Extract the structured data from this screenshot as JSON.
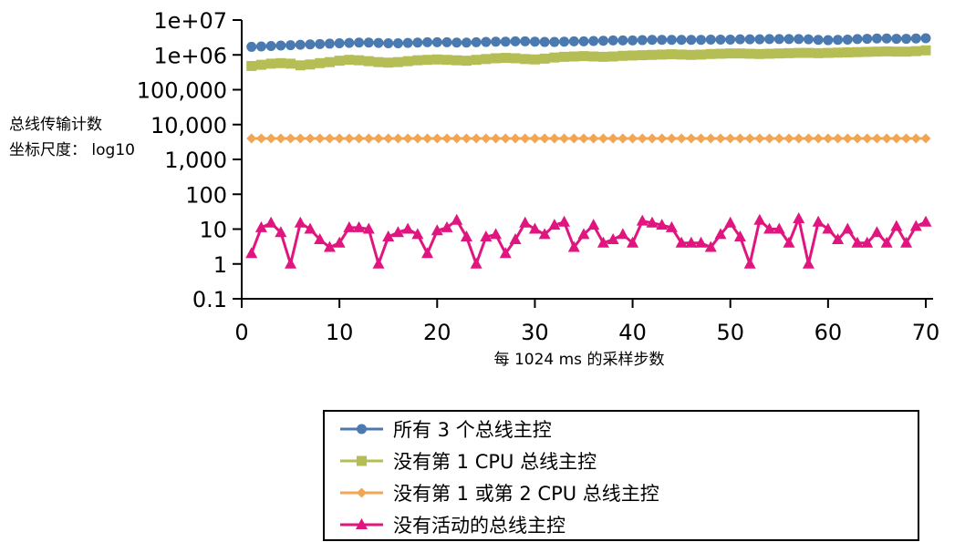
{
  "chart_data": {
    "type": "line",
    "title": "",
    "xlabel": "每 1024 ms 的采样步数",
    "ylabel_lines": [
      "总线传输计数",
      "坐标尺度： log10"
    ],
    "y_scale": "log10",
    "xlim": [
      0,
      70
    ],
    "ylim": [
      0.1,
      10000000
    ],
    "x_ticks": [
      0,
      10,
      20,
      30,
      40,
      50,
      60,
      70
    ],
    "x_tick_labels": [
      "0",
      "10",
      "20",
      "30",
      "40",
      "50",
      "60",
      "70"
    ],
    "y_ticks": [
      0.1,
      1,
      10,
      100,
      1000,
      10000,
      100000,
      1000000,
      10000000
    ],
    "y_tick_labels": [
      "0.1",
      "1",
      "10",
      "100",
      "1,000",
      "10,000",
      "100,000",
      "1e+06",
      "1e+07"
    ],
    "x": [
      1,
      2,
      3,
      4,
      5,
      6,
      7,
      8,
      9,
      10,
      11,
      12,
      13,
      14,
      15,
      16,
      17,
      18,
      19,
      20,
      21,
      22,
      23,
      24,
      25,
      26,
      27,
      28,
      29,
      30,
      31,
      32,
      33,
      34,
      35,
      36,
      37,
      38,
      39,
      40,
      41,
      42,
      43,
      44,
      45,
      46,
      47,
      48,
      49,
      50,
      51,
      52,
      53,
      54,
      55,
      56,
      57,
      58,
      59,
      60,
      61,
      62,
      63,
      64,
      65,
      66,
      67,
      68,
      69,
      70
    ],
    "legend_position": "bottom-center",
    "series": [
      {
        "name": "所有 3 个总线主控",
        "color": "#4a7ab0",
        "marker": "circle",
        "values": [
          1700000,
          1750000,
          1800000,
          1850000,
          1900000,
          1950000,
          2000000,
          2050000,
          2100000,
          2150000,
          2200000,
          2250000,
          2250000,
          2200000,
          2150000,
          2150000,
          2200000,
          2250000,
          2300000,
          2300000,
          2300000,
          2250000,
          2250000,
          2300000,
          2350000,
          2400000,
          2400000,
          2450000,
          2450000,
          2400000,
          2350000,
          2350000,
          2400000,
          2450000,
          2450000,
          2500000,
          2550000,
          2600000,
          2600000,
          2600000,
          2650000,
          2700000,
          2700000,
          2700000,
          2700000,
          2700000,
          2700000,
          2750000,
          2750000,
          2750000,
          2800000,
          2800000,
          2800000,
          2850000,
          2850000,
          2850000,
          2850000,
          2800000,
          2700000,
          2650000,
          2700000,
          2750000,
          2850000,
          2900000,
          2950000,
          2950000,
          2900000,
          2900000,
          2950000,
          3000000
        ]
      },
      {
        "name": "没有第 1 CPU 总线主控",
        "color": "#b5be55",
        "marker": "square",
        "values": [
          480000,
          520000,
          560000,
          580000,
          560000,
          500000,
          530000,
          580000,
          620000,
          680000,
          720000,
          700000,
          660000,
          620000,
          600000,
          620000,
          660000,
          700000,
          720000,
          740000,
          720000,
          700000,
          680000,
          720000,
          760000,
          800000,
          820000,
          800000,
          760000,
          740000,
          780000,
          840000,
          880000,
          900000,
          920000,
          900000,
          880000,
          900000,
          940000,
          960000,
          980000,
          1000000,
          1020000,
          1040000,
          1020000,
          1000000,
          1020000,
          1060000,
          1080000,
          1100000,
          1100000,
          1080000,
          1060000,
          1080000,
          1100000,
          1120000,
          1140000,
          1140000,
          1120000,
          1140000,
          1160000,
          1180000,
          1200000,
          1220000,
          1240000,
          1260000,
          1240000,
          1240000,
          1280000,
          1350000
        ]
      },
      {
        "name": "没有第 1 或第 2 CPU 总线主控",
        "color": "#f2a654",
        "marker": "diamond",
        "values": [
          4000,
          4000,
          4000,
          4000,
          4000,
          4000,
          4000,
          4000,
          4000,
          4000,
          4000,
          4000,
          4000,
          4000,
          4000,
          4000,
          4000,
          4000,
          4000,
          4000,
          4000,
          4000,
          4000,
          4000,
          4000,
          4000,
          4000,
          4000,
          4000,
          4000,
          4000,
          4000,
          4000,
          4000,
          4000,
          4000,
          4000,
          4000,
          4000,
          4000,
          4000,
          4000,
          4000,
          4000,
          4000,
          4000,
          4000,
          4000,
          4000,
          4000,
          4000,
          4000,
          4000,
          4000,
          4000,
          4000,
          4000,
          4000,
          4000,
          4000,
          4000,
          4000,
          4000,
          4000,
          4000,
          4000,
          4000,
          4000,
          4000,
          4000
        ]
      },
      {
        "name": "没有活动的总线主控",
        "color": "#e0157f",
        "marker": "triangle",
        "values": [
          2,
          11,
          15,
          8,
          1,
          15,
          10,
          5,
          3,
          4,
          11,
          11,
          10,
          1,
          6,
          8,
          10,
          7,
          2,
          9,
          11,
          18,
          6,
          1,
          6,
          7,
          2,
          5,
          15,
          10,
          7,
          13,
          16,
          3,
          7,
          13,
          4,
          5,
          7,
          4,
          17,
          15,
          13,
          11,
          4,
          4,
          4,
          3,
          7,
          15,
          6,
          1,
          18,
          10,
          10,
          4,
          20,
          1,
          16,
          10,
          5,
          10,
          4,
          4,
          8,
          4,
          12,
          4,
          12,
          16
        ]
      }
    ]
  }
}
